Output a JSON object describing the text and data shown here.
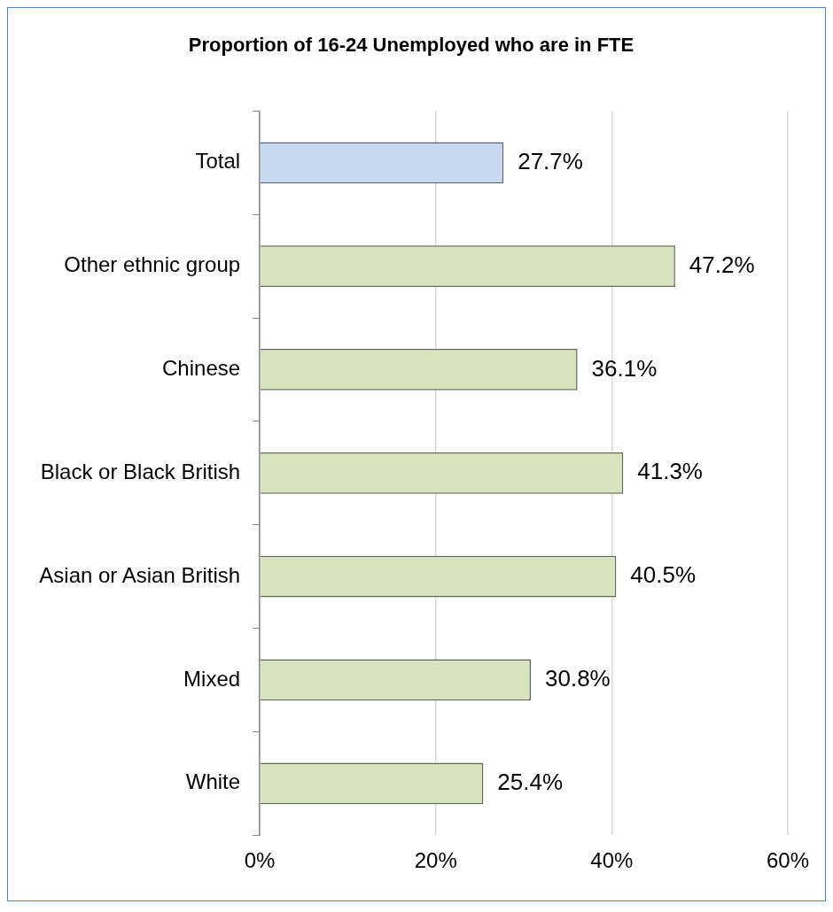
{
  "chart_data": {
    "type": "bar",
    "orientation": "horizontal",
    "title": "Proportion of 16-24 Unemployed who are in FTE",
    "categories": [
      "Total",
      "Other ethnic group",
      "Chinese",
      "Black or Black British",
      "Asian or Asian British",
      "Mixed",
      "White"
    ],
    "values": [
      27.7,
      47.2,
      36.1,
      41.3,
      40.5,
      30.8,
      25.4
    ],
    "value_labels": [
      "27.7%",
      "47.2%",
      "36.1%",
      "41.3%",
      "40.5%",
      "30.8%",
      "25.4%"
    ],
    "colors": [
      "#c6d9f1",
      "#d7e4bd",
      "#d7e4bd",
      "#d7e4bd",
      "#d7e4bd",
      "#d7e4bd",
      "#d7e4bd"
    ],
    "xlim": [
      0,
      60
    ],
    "xticks": [
      {
        "value": 0,
        "label": "0%"
      },
      {
        "value": 20,
        "label": "20%"
      },
      {
        "value": 40,
        "label": "40%"
      },
      {
        "value": 60,
        "label": "60%"
      }
    ],
    "grid": "x",
    "legend": false
  }
}
